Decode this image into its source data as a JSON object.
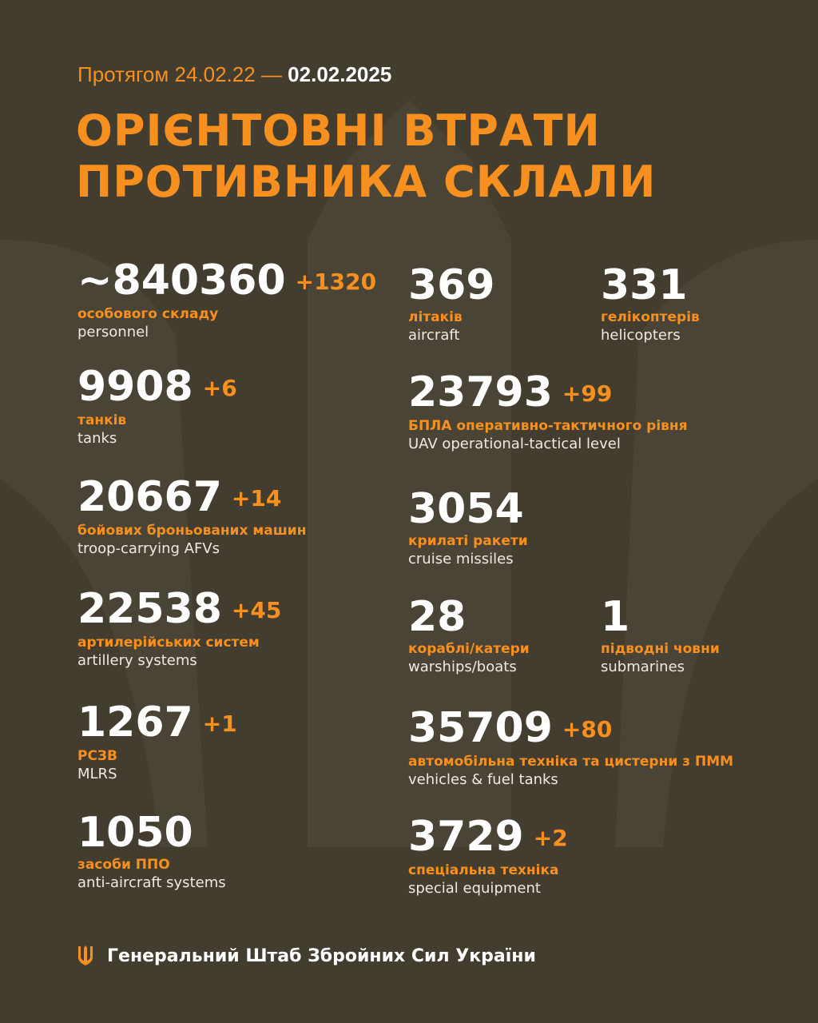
{
  "header": {
    "period_prefix": "Протягом 24.02.22 —",
    "period_end": "02.02.2025",
    "title_line1": "ОРІЄНТОВНІ ВТРАТИ",
    "title_line2": "ПРОТИВНИКА СКЛАЛИ"
  },
  "left": [
    {
      "value": "~840360",
      "delta": "+1320",
      "ua": "особового складу",
      "en": "personnel"
    },
    {
      "value": "9908",
      "delta": "+6",
      "ua": "танків",
      "en": "tanks"
    },
    {
      "value": "20667",
      "delta": "+14",
      "ua": "бойових броньованих машин",
      "en": "troop-carrying AFVs"
    },
    {
      "value": "22538",
      "delta": "+45",
      "ua": "артилерійських систем",
      "en": "artillery systems"
    },
    {
      "value": "1267",
      "delta": "+1",
      "ua": "РСЗВ",
      "en": "MLRS"
    },
    {
      "value": "1050",
      "delta": "",
      "ua": "засоби ППО",
      "en": "anti-aircraft systems"
    }
  ],
  "right": [
    {
      "value": "369",
      "delta": "",
      "ua": "літаків",
      "en": "aircraft"
    },
    {
      "value": "331",
      "delta": "",
      "ua": "гелікоптерів",
      "en": "helicopters"
    },
    {
      "value": "23793",
      "delta": "+99",
      "ua": "БПЛА оперативно-тактичного рівня",
      "en": "UAV operational-tactical level"
    },
    {
      "value": "3054",
      "delta": "",
      "ua": "крилаті ракети",
      "en": "cruise missiles"
    },
    {
      "value": "28",
      "delta": "",
      "ua": "кораблі/катери",
      "en": "warships/boats"
    },
    {
      "value": "1",
      "delta": "",
      "ua": "підводні човни",
      "en": "submarines"
    },
    {
      "value": "35709",
      "delta": "+80",
      "ua": "автомобільна техніка та цистерни з ПММ",
      "en": "vehicles & fuel tanks"
    },
    {
      "value": "3729",
      "delta": "+2",
      "ua": "спеціальна техніка",
      "en": "special equipment"
    }
  ],
  "footer": {
    "org": "Генеральний Штаб Збройних Сил України",
    "icon": "trident-icon"
  },
  "colors": {
    "background": "#433d30",
    "accent": "#f7901e",
    "text": "#ffffff"
  }
}
